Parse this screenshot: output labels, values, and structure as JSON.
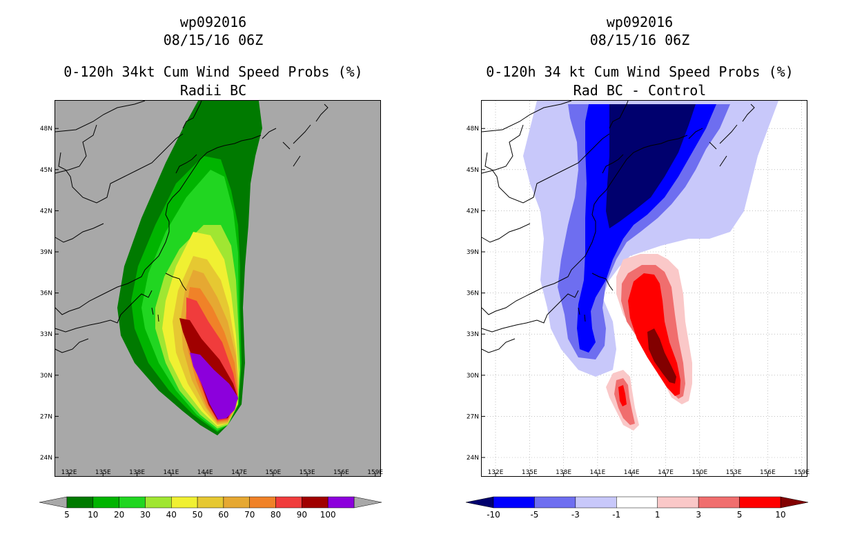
{
  "left": {
    "header": {
      "line1": "wp092016",
      "line2": "08/15/16 06Z"
    },
    "title": {
      "line1": "0-120h 34kt Cum Wind Speed Probs (%)",
      "line2": "Radii BC"
    },
    "background_color": "#a8a8a8",
    "colorbar": {
      "labels": [
        "5",
        "10",
        "20",
        "30",
        "40",
        "50",
        "60",
        "70",
        "80",
        "90",
        "100"
      ],
      "colors": [
        "#007a00",
        "#00b400",
        "#21d621",
        "#a0e632",
        "#f0f032",
        "#e6c832",
        "#e6a832",
        "#f08228",
        "#f03c3c",
        "#a00000",
        "#8c00dc"
      ]
    }
  },
  "right": {
    "header": {
      "line1": "wp092016",
      "line2": "08/15/16 06Z"
    },
    "title": {
      "line1": "0-120h 34 kt Cum Wind Speed Probs (%)",
      "line2": "Rad BC - Control"
    },
    "background_color": "#ffffff",
    "colorbar": {
      "labels": [
        "-10",
        "-5",
        "-3",
        "-1",
        "1",
        "3",
        "5",
        "10"
      ],
      "colors": [
        "#00006e",
        "#0000ff",
        "#6e6ef0",
        "#c8c8fa",
        "#ffffff",
        "#fac8c8",
        "#f06e6e",
        "#ff0000",
        "#820000"
      ]
    }
  },
  "axes": {
    "lon_labels": [
      "132E",
      "135E",
      "138E",
      "141E",
      "144E",
      "147E",
      "150E",
      "153E",
      "156E",
      "159E"
    ],
    "lat_labels": [
      "24N",
      "27N",
      "30N",
      "33N",
      "36N",
      "39N",
      "42N",
      "45N",
      "48N"
    ]
  },
  "icons": {
    "coastline": "coastline-icon",
    "colorbar_arrow": "triangle-arrow-icon"
  }
}
